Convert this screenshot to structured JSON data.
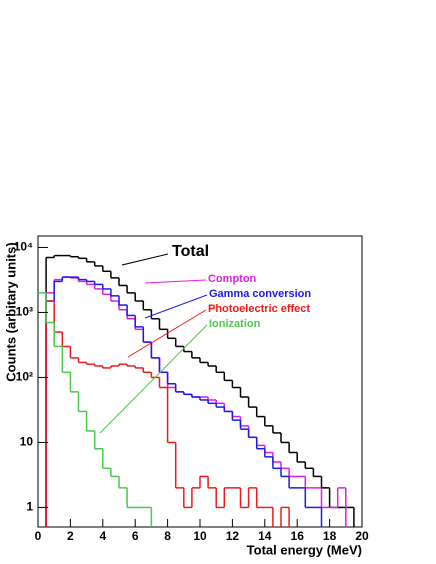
{
  "chart_data": {
    "type": "histogram",
    "xlabel": "Total energy (MeV)",
    "ylabel": "Counts (arbitary units)",
    "log_y": true,
    "bins": [
      0,
      0.5,
      1,
      1.5,
      2,
      2.5,
      3,
      3.5,
      4,
      4.5,
      5,
      5.5,
      6,
      6.5,
      7,
      7.5,
      8,
      8.5,
      9,
      9.5,
      10,
      10.5,
      11,
      11.5,
      12,
      12.5,
      13,
      13.5,
      14,
      14.5,
      15,
      15.5,
      16,
      16.5,
      17,
      17.5,
      18,
      18.5,
      19,
      19.5,
      20
    ],
    "xlim": [
      0,
      20
    ],
    "xticks": [
      0,
      2,
      4,
      6,
      8,
      10,
      12,
      14,
      16,
      18,
      20
    ],
    "ylim": [
      0.5,
      15000
    ],
    "yticks": [
      1,
      10,
      {
        "value": 100,
        "label": "10²"
      },
      {
        "value": 1000,
        "label": "10³"
      },
      {
        "value": 10000,
        "label": "10⁴"
      }
    ],
    "series": [
      {
        "name": "Total",
        "color": "#000000",
        "values": [
          0,
          7000,
          7500,
          7500,
          7200,
          6800,
          6000,
          5200,
          4300,
          3400,
          2600,
          2000,
          1500,
          1100,
          800,
          550,
          400,
          300,
          250,
          200,
          170,
          150,
          120,
          90,
          70,
          50,
          35,
          25,
          18,
          14,
          10,
          7,
          5,
          4,
          3,
          2,
          1,
          1,
          1,
          0
        ]
      },
      {
        "name": "Compton",
        "color": "#e01ee0",
        "values": [
          0,
          2000,
          3200,
          3500,
          3400,
          3000,
          2700,
          2300,
          1900,
          1500,
          1100,
          800,
          550,
          350,
          200,
          120,
          70,
          60,
          55,
          50,
          50,
          45,
          40,
          30,
          25,
          18,
          12,
          9,
          7,
          5,
          4,
          3,
          3,
          2,
          2,
          1,
          1,
          2,
          0,
          0
        ]
      },
      {
        "name": "Gamma conversion",
        "color": "#1a1aee",
        "values": [
          0,
          1500,
          3000,
          3500,
          3500,
          3200,
          3000,
          2700,
          2300,
          1800,
          1300,
          900,
          600,
          350,
          200,
          120,
          80,
          60,
          55,
          50,
          45,
          40,
          35,
          30,
          22,
          16,
          12,
          8,
          6,
          4,
          3,
          2,
          2,
          1,
          1,
          0,
          0,
          0,
          0,
          0
        ]
      },
      {
        "name": "Photoelectric effect",
        "color": "#ee1a1a",
        "values": [
          0,
          1500,
          500,
          300,
          200,
          170,
          160,
          150,
          140,
          150,
          160,
          150,
          140,
          120,
          100,
          70,
          10,
          2,
          1,
          2,
          3,
          2,
          1,
          2,
          2,
          1,
          2,
          1,
          1,
          0,
          1,
          0,
          0,
          0,
          0,
          0,
          0,
          0,
          0,
          0
        ]
      },
      {
        "name": "Ionization",
        "color": "#4cc94c",
        "values": [
          2000,
          700,
          300,
          120,
          60,
          30,
          15,
          8,
          4,
          3,
          2,
          1,
          1,
          1,
          0,
          0,
          0,
          0,
          0,
          0,
          0,
          0,
          0,
          0,
          0,
          0,
          0,
          0,
          0,
          0,
          0,
          0,
          0,
          0,
          0,
          0,
          0,
          0,
          0,
          0
        ]
      }
    ]
  }
}
